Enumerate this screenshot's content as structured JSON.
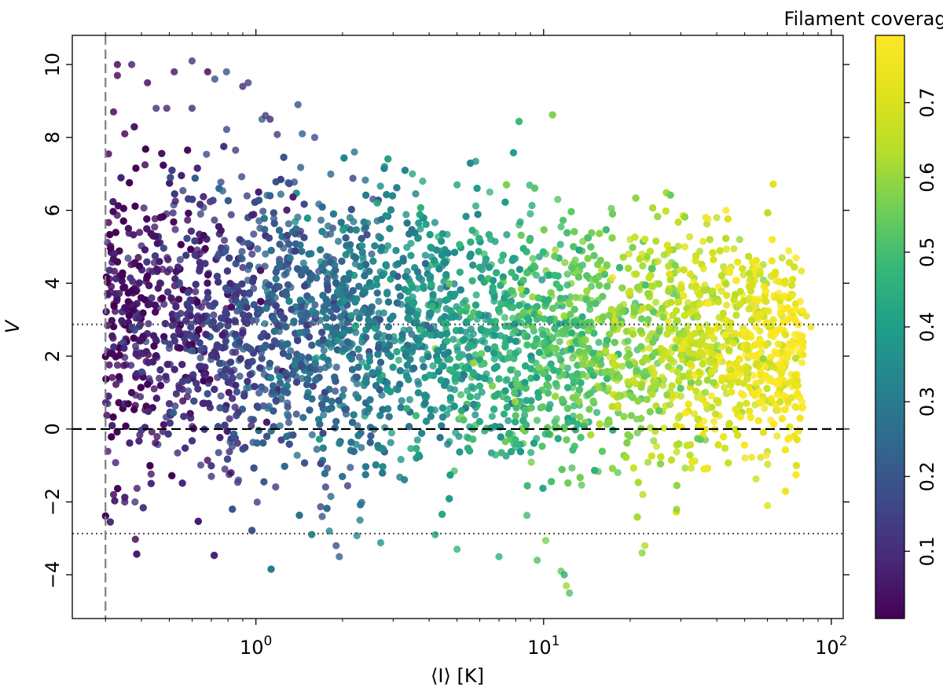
{
  "chart_data": {
    "type": "scatter",
    "xlabel": "⟨I⟩ [K]",
    "ylabel": "V",
    "x_scale": "log",
    "xlim": [
      0.23,
      110
    ],
    "ylim": [
      -5.2,
      10.8
    ],
    "x_ticks": [
      {
        "value": 1,
        "base": "10",
        "exp": "0"
      },
      {
        "value": 10,
        "base": "10",
        "exp": "1"
      },
      {
        "value": 100,
        "base": "10",
        "exp": "2"
      }
    ],
    "y_ticks": [
      {
        "value": -4,
        "label": "−4"
      },
      {
        "value": -2,
        "label": "−2"
      },
      {
        "value": 0,
        "label": "0"
      },
      {
        "value": 2,
        "label": "2"
      },
      {
        "value": 4,
        "label": "4"
      },
      {
        "value": 6,
        "label": "6"
      },
      {
        "value": 8,
        "label": "8"
      },
      {
        "value": 10,
        "label": "10"
      }
    ],
    "colorbar": {
      "label": "Filament coverage [%]",
      "colormap": "viridis",
      "range": [
        0.01,
        0.79
      ],
      "ticks": [
        {
          "value": 0.1,
          "label": "0.1"
        },
        {
          "value": 0.2,
          "label": "0.2"
        },
        {
          "value": 0.3,
          "label": "0.3"
        },
        {
          "value": 0.4,
          "label": "0.4"
        },
        {
          "value": 0.5,
          "label": "0.5"
        },
        {
          "value": 0.6,
          "label": "0.6"
        },
        {
          "value": 0.7,
          "label": "0.7"
        }
      ]
    },
    "reference_lines": [
      {
        "orientation": "horizontal",
        "value": 0,
        "style": "dashed",
        "color": "#000000"
      },
      {
        "orientation": "horizontal",
        "value": 2.87,
        "style": "dotted",
        "color": "#555555"
      },
      {
        "orientation": "horizontal",
        "value": -2.87,
        "style": "dotted",
        "color": "#555555"
      },
      {
        "orientation": "vertical",
        "value": 0.3,
        "style": "dashed",
        "color": "#808080"
      }
    ],
    "points": [
      [
        0.33,
        10.0
      ],
      [
        0.33,
        9.7
      ],
      [
        0.37,
        10.0
      ],
      [
        0.42,
        9.5
      ],
      [
        0.52,
        9.8
      ],
      [
        0.6,
        10.1
      ],
      [
        0.68,
        9.8
      ],
      [
        0.72,
        9.6
      ],
      [
        0.79,
        9.8
      ],
      [
        0.9,
        9.4
      ],
      [
        0.94,
        9.5
      ],
      [
        0.45,
        8.8
      ],
      [
        0.49,
        8.8
      ],
      [
        0.35,
        8.1
      ],
      [
        0.32,
        8.7
      ],
      [
        0.6,
        8.8
      ],
      [
        1.05,
        8.5
      ],
      [
        1.08,
        8.6
      ],
      [
        1.12,
        8.5
      ],
      [
        1.4,
        8.9
      ],
      [
        1.45,
        8.1
      ],
      [
        1.6,
        8.0
      ],
      [
        2.2,
        7.6
      ],
      [
        2.8,
        7.2
      ],
      [
        3.5,
        7.0
      ],
      [
        3.8,
        6.8
      ],
      [
        5.0,
        6.7
      ],
      [
        6.5,
        6.5
      ],
      [
        11.2,
        6.3
      ],
      [
        43.0,
        6.0
      ],
      [
        40.0,
        5.8
      ],
      [
        0.35,
        -2.0
      ],
      [
        0.32,
        -1.8
      ],
      [
        0.38,
        -2.0
      ],
      [
        1.8,
        -2.8
      ],
      [
        1.9,
        -3.2
      ],
      [
        1.95,
        -3.5
      ],
      [
        1.7,
        -2.4
      ],
      [
        2.3,
        -2.5
      ],
      [
        4.2,
        -2.9
      ],
      [
        5.0,
        -3.3
      ],
      [
        7.0,
        -3.5
      ],
      [
        9.5,
        -3.6
      ],
      [
        11.5,
        -3.9
      ],
      [
        12.0,
        -4.3
      ],
      [
        12.3,
        -4.5
      ],
      [
        11.8,
        -4.0
      ],
      [
        22.0,
        -3.4
      ],
      [
        22.5,
        -3.2
      ],
      [
        0.82,
        -1.2
      ],
      [
        0.87,
        -1.4
      ],
      [
        0.78,
        -1.1
      ],
      [
        0.7,
        -1.3
      ],
      [
        29.0,
        -2.2
      ],
      [
        60.0,
        -2.1
      ],
      [
        65.0,
        3.6
      ],
      [
        70.0,
        3.3
      ],
      [
        78.0,
        3.5
      ],
      [
        82.0,
        3.1
      ],
      [
        85.0,
        2.8
      ],
      [
        20.0,
        5.2
      ],
      [
        22.0,
        4.8
      ],
      [
        25.0,
        4.6
      ],
      [
        31.0,
        5.0
      ],
      [
        36.0,
        4.4
      ],
      [
        48.0,
        5.2
      ],
      [
        55.0,
        4.5
      ]
    ]
  }
}
